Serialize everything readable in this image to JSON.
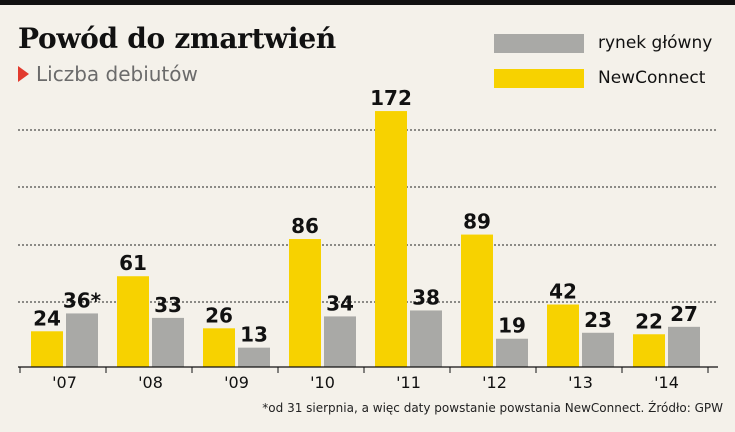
{
  "title": "Powód do zmartwień",
  "subtitle": "Liczba debiutów",
  "footnote": "*od 31 sierpnia, a więc daty powstanie powstania NewConnect. Źródło: GPW",
  "colors": {
    "newconnect": "#f7d200",
    "main_market": "#a9a9a6",
    "accent": "#e23a2e"
  },
  "chart_data": {
    "type": "bar",
    "categories": [
      "'07",
      "'08",
      "'09",
      "'10",
      "'11",
      "'12",
      "'13",
      "'14"
    ],
    "series": [
      {
        "name": "NewConnect",
        "values": [
          24,
          61,
          26,
          86,
          172,
          89,
          42,
          22
        ],
        "labels": [
          "24",
          "61",
          "26",
          "86",
          "172",
          "89",
          "42",
          "22"
        ]
      },
      {
        "name": "rynek główny",
        "values": [
          36,
          33,
          13,
          34,
          38,
          19,
          23,
          27
        ],
        "labels": [
          "36*",
          "33",
          "13",
          "34",
          "38",
          "19",
          "23",
          "27"
        ]
      }
    ],
    "legend": [
      "rynek główny",
      "NewConnect"
    ],
    "legend_position": "top-right",
    "ylim": [
      0,
      172
    ],
    "grid": true
  }
}
